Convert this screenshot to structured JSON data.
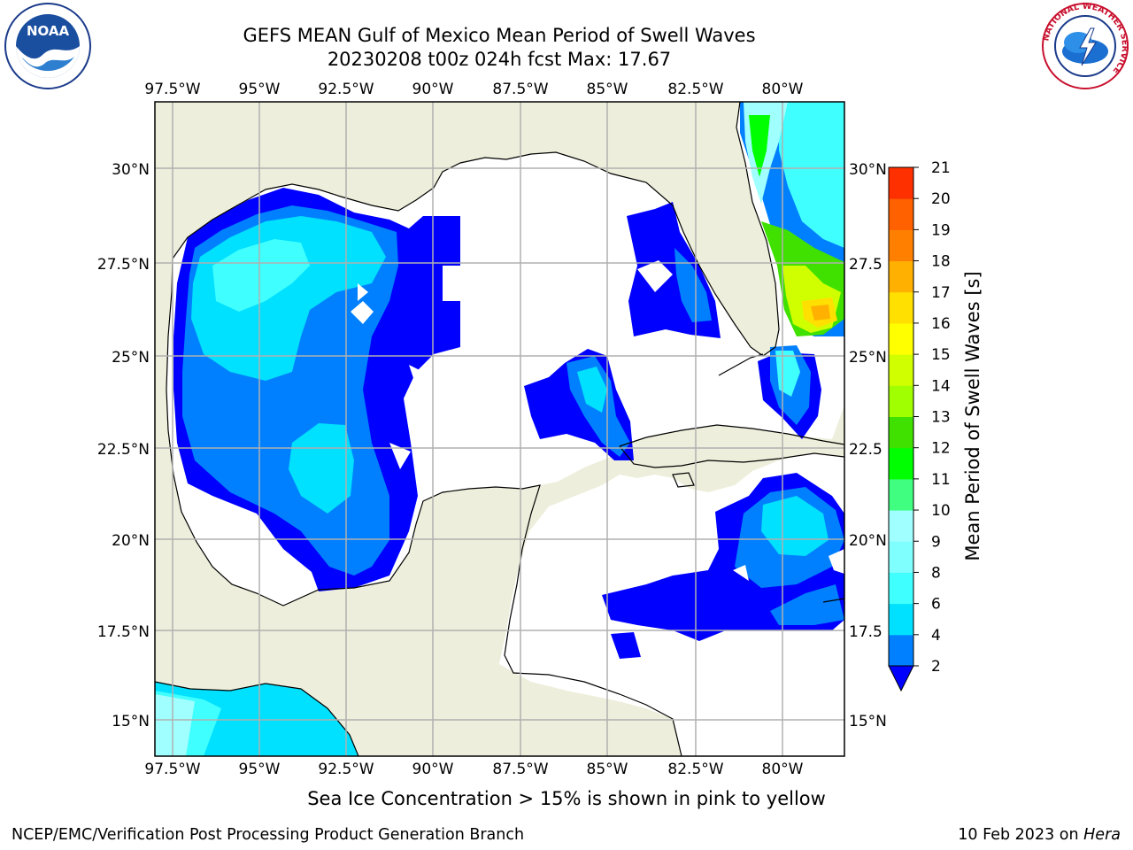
{
  "title": {
    "line1": "GEFS MEAN Gulf of Mexico Mean Period of Swell Waves",
    "line2": "20230208 t00z 024h fcst   Max: 17.67"
  },
  "map": {
    "lon_labels_top": [
      "97.5°W",
      "95°W",
      "92.5°W",
      "90°W",
      "87.5°W",
      "85°W",
      "82.5°W",
      "80°W"
    ],
    "lon_labels_bottom": [
      "97.5°W",
      "95°W",
      "92.5°W",
      "90°W",
      "87.5°W",
      "85°W",
      "82.5°W",
      "80°W"
    ],
    "lat_labels_left": [
      "30°N",
      "27.5°N",
      "25°N",
      "22.5°N",
      "20°N",
      "17.5°N",
      "15°N"
    ],
    "lat_labels_right": [
      "30°N",
      "27.5",
      "25°N",
      "22.5",
      "20°N",
      "17.5",
      "15°N"
    ],
    "land_color": "#eeeedc",
    "water_color": "#ffffff",
    "grid_color": "#b0b0b0"
  },
  "colorbar": {
    "label": "Mean Period of Swell Waves [s]",
    "ticks": [
      "21",
      "20",
      "19",
      "18",
      "17",
      "16",
      "15",
      "14",
      "13",
      "12",
      "11",
      "10",
      "9",
      "8",
      "6",
      "4",
      "2"
    ],
    "colors": [
      "#0000ff",
      "#0080ff",
      "#00e0ff",
      "#40ffff",
      "#80ffff",
      "#a0ffff",
      "#40ff80",
      "#00ff00",
      "#40e000",
      "#a0ff00",
      "#d0ff00",
      "#ffff00",
      "#ffe000",
      "#ffb000",
      "#ff8000",
      "#ff6000",
      "#ff3000",
      "#ff0000"
    ]
  },
  "footnote": "Sea Ice Concentration > 15% is shown in pink to yellow",
  "footer": {
    "left": "NCEP/EMC/Verification Post Processing Product Generation Branch",
    "right_prefix": "10 Feb 2023 on ",
    "right_host": "Hera"
  },
  "logos": {
    "noaa": "NOAA",
    "nws_ring": "NATIONAL WEATHER SERVICE"
  }
}
